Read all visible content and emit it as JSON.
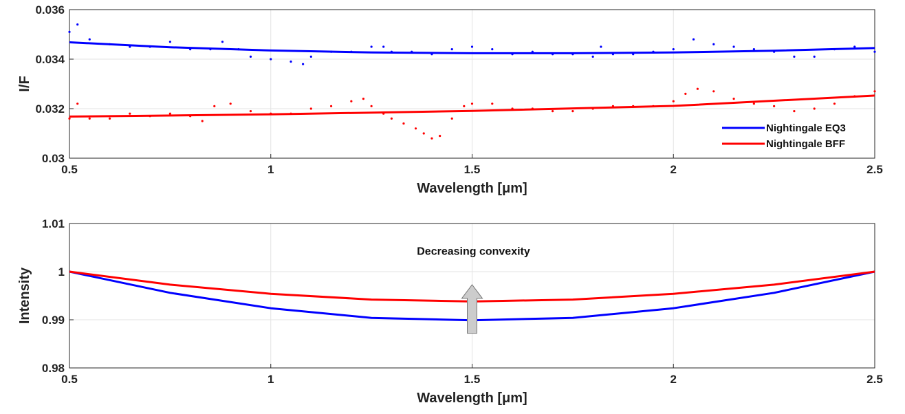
{
  "chart_data": [
    {
      "type": "scatter",
      "xlabel": "Wavelength [μm]",
      "ylabel": "I/F",
      "xlim": [
        0.5,
        2.5
      ],
      "ylim": [
        0.03,
        0.036
      ],
      "xticks": [
        "0.5",
        "1",
        "1.5",
        "2",
        "2.5"
      ],
      "yticks": [
        "0.03",
        "0.032",
        "0.034",
        "0.036"
      ],
      "grid": true,
      "legend_position": "bottom-right",
      "series": [
        {
          "name": "Nightingale EQ3",
          "color": "#0000ff",
          "fit": {
            "x": [
              0.5,
              0.75,
              1.0,
              1.25,
              1.5,
              1.75,
              2.0,
              2.25,
              2.5
            ],
            "y": [
              0.03468,
              0.03448,
              0.03435,
              0.03427,
              0.03424,
              0.03424,
              0.03427,
              0.03434,
              0.03445
            ]
          },
          "points": {
            "x": [
              0.5,
              0.52,
              0.55,
              0.6,
              0.65,
              0.7,
              0.75,
              0.8,
              0.85,
              0.88,
              0.92,
              0.95,
              1.0,
              1.05,
              1.08,
              1.1,
              1.15,
              1.2,
              1.25,
              1.28,
              1.3,
              1.35,
              1.4,
              1.45,
              1.5,
              1.55,
              1.6,
              1.65,
              1.7,
              1.75,
              1.8,
              1.82,
              1.85,
              1.9,
              1.95,
              2.0,
              2.05,
              2.1,
              2.15,
              2.2,
              2.25,
              2.3,
              2.35,
              2.4,
              2.45,
              2.5
            ],
            "y": [
              0.0351,
              0.0354,
              0.0348,
              0.0346,
              0.0345,
              0.0345,
              0.0347,
              0.0344,
              0.0344,
              0.0347,
              0.0344,
              0.0341,
              0.034,
              0.0339,
              0.0338,
              0.0341,
              0.0343,
              0.0343,
              0.0345,
              0.0345,
              0.0343,
              0.0343,
              0.0342,
              0.0344,
              0.0345,
              0.0344,
              0.0342,
              0.0343,
              0.0342,
              0.0342,
              0.0341,
              0.0345,
              0.0342,
              0.0342,
              0.0343,
              0.0344,
              0.0348,
              0.0346,
              0.0345,
              0.0344,
              0.0343,
              0.0341,
              0.0341,
              0.0344,
              0.0345,
              0.0343
            ]
          }
        },
        {
          "name": "Nightingale BFF",
          "color": "#ff0000",
          "fit": {
            "x": [
              0.5,
              1.0,
              1.5,
              2.0,
              2.5
            ],
            "y": [
              0.03168,
              0.03177,
              0.03191,
              0.03211,
              0.03253
            ]
          },
          "points": {
            "x": [
              0.5,
              0.52,
              0.55,
              0.6,
              0.65,
              0.7,
              0.75,
              0.8,
              0.83,
              0.86,
              0.9,
              0.95,
              1.0,
              1.05,
              1.1,
              1.15,
              1.2,
              1.23,
              1.25,
              1.28,
              1.3,
              1.33,
              1.36,
              1.38,
              1.4,
              1.42,
              1.45,
              1.48,
              1.5,
              1.55,
              1.6,
              1.65,
              1.7,
              1.75,
              1.8,
              1.85,
              1.9,
              1.95,
              2.0,
              2.03,
              2.06,
              2.1,
              2.15,
              2.2,
              2.25,
              2.3,
              2.35,
              2.4,
              2.45,
              2.5
            ],
            "y": [
              0.0316,
              0.0322,
              0.0316,
              0.0316,
              0.0318,
              0.0317,
              0.0318,
              0.0317,
              0.0315,
              0.0321,
              0.0322,
              0.0319,
              0.0318,
              0.0318,
              0.032,
              0.0321,
              0.0323,
              0.0324,
              0.0321,
              0.0318,
              0.0316,
              0.0314,
              0.0312,
              0.031,
              0.0308,
              0.0309,
              0.0316,
              0.0321,
              0.0322,
              0.0322,
              0.032,
              0.032,
              0.0319,
              0.0319,
              0.032,
              0.0321,
              0.0321,
              0.0321,
              0.0323,
              0.0326,
              0.0328,
              0.0327,
              0.0324,
              0.0322,
              0.0321,
              0.0319,
              0.032,
              0.0322,
              0.0325,
              0.0327
            ]
          }
        }
      ]
    },
    {
      "type": "line",
      "xlabel": "Wavelength [μm]",
      "ylabel": "Intensity",
      "xlim": [
        0.5,
        2.5
      ],
      "ylim": [
        0.98,
        1.01
      ],
      "xticks": [
        "0.5",
        "1",
        "1.5",
        "2",
        "2.5"
      ],
      "yticks": [
        "0.98",
        "0.99",
        "1",
        "1.01"
      ],
      "grid": true,
      "annotation": {
        "text": "Decreasing convexity",
        "x": 1.5,
        "y": 1.0035,
        "arrow_from_y": 0.9872,
        "arrow_to_y": 0.9973
      },
      "series": [
        {
          "color": "#0000ff",
          "x": [
            0.5,
            0.75,
            1.0,
            1.25,
            1.5,
            1.75,
            2.0,
            2.25,
            2.5
          ],
          "values": [
            1.0,
            0.9956,
            0.9924,
            0.9904,
            0.9899,
            0.9904,
            0.9924,
            0.9956,
            1.0
          ]
        },
        {
          "color": "#ff0000",
          "x": [
            0.5,
            0.75,
            1.0,
            1.25,
            1.5,
            1.75,
            2.0,
            2.25,
            2.5
          ],
          "values": [
            1.0,
            0.9973,
            0.9954,
            0.9942,
            0.9938,
            0.9942,
            0.9954,
            0.9973,
            1.0
          ]
        }
      ]
    }
  ]
}
